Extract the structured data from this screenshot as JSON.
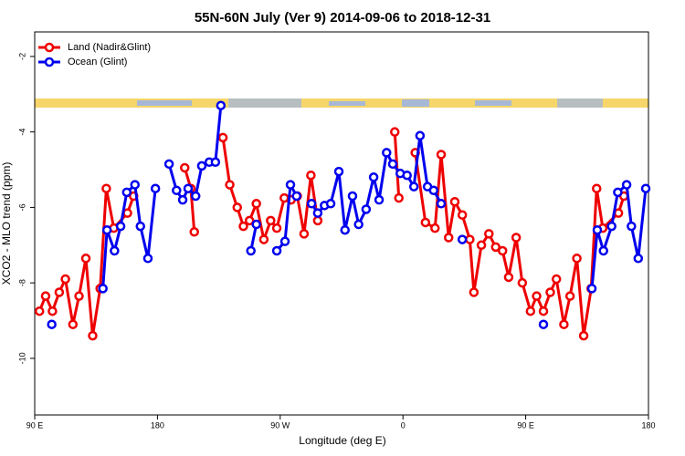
{
  "chart_data": {
    "type": "line",
    "title": "55N-60N July (Ver 9)   2014-09-06 to 2018-12-31",
    "x_label": "Longitude (deg E)",
    "y_label": "XCO2 - MLO trend (ppm)",
    "xlim": [
      90,
      540
    ],
    "ylim": [
      -11.5,
      -1.35
    ],
    "xticks": [
      {
        "value": 90,
        "label": "90 E"
      },
      180,
      {
        "value": 270,
        "label": "90 W"
      },
      {
        "value": 360,
        "label": "0"
      },
      {
        "value": 450,
        "label": "90 E"
      },
      {
        "value": 540,
        "label": "180"
      }
    ],
    "yticks": [
      -2,
      -4,
      -6,
      -8,
      -10
    ],
    "legend": "top-left",
    "series": [
      {
        "name": "Land (Nadir&Glint)",
        "color": "#ee0000",
        "x": [
          93.5,
          98,
          103,
          108,
          112.5,
          118,
          122.5,
          127.5,
          132.5,
          138,
          142.5,
          148,
          158,
          162.5,
          null,
          200,
          204.5,
          207,
          null,
          228,
          233,
          238.5,
          243,
          247.5,
          252.5,
          258,
          263,
          267.5,
          273,
          278,
          282.5,
          287.5,
          292.5,
          297.5,
          null,
          354,
          357,
          null,
          369,
          376.5,
          383.5,
          388,
          393.5,
          398,
          403.5,
          409,
          412,
          417.5,
          423,
          428,
          433,
          437.5,
          443,
          447.5,
          453.5,
          458,
          463,
          468,
          472.5,
          478,
          482.5,
          487.5,
          492.5,
          498,
          502,
          506.5,
          518,
          522
        ],
        "values": [
          -8.75,
          -8.35,
          -8.75,
          -8.25,
          -7.9,
          -9.1,
          -8.35,
          -7.35,
          -9.4,
          -8.15,
          -5.5,
          -6.55,
          -6.15,
          -5.7,
          null,
          -4.95,
          -5.5,
          -6.65,
          null,
          -4.15,
          -5.4,
          -6.0,
          -6.5,
          -6.35,
          -5.9,
          -6.85,
          -6.35,
          -6.55,
          -5.75,
          -5.8,
          -5.7,
          -6.7,
          -5.15,
          -6.35,
          null,
          -4.0,
          -5.75,
          null,
          -4.55,
          -6.4,
          -6.55,
          -4.6,
          -6.8,
          -5.85,
          -6.2,
          -6.85,
          -8.25,
          -7.0,
          -6.7,
          -7.05,
          -7.15,
          -7.85,
          -6.8,
          -8.0,
          -8.75,
          -8.35,
          -8.75,
          -8.25,
          -7.9,
          -9.1,
          -8.35,
          -7.35,
          -9.4,
          -8.15,
          -5.5,
          -6.55,
          -6.15,
          -5.7
        ]
      },
      {
        "name": "Ocean (Glint)",
        "color": "#0000ee",
        "x": [
          102.5,
          null,
          140,
          143,
          148.5,
          153,
          157.5,
          163.5,
          167.5,
          173,
          178.5,
          null,
          188.5,
          194,
          198.5,
          202.5,
          208,
          212.5,
          218,
          222.5,
          226.5,
          null,
          248.5,
          252.5,
          null,
          267.5,
          273.5,
          277.5,
          282,
          null,
          293,
          297.5,
          302.5,
          307,
          313,
          317.5,
          323,
          327.5,
          333,
          338.5,
          342.5,
          348,
          352.5,
          358,
          363,
          368,
          372.5,
          378,
          382.5,
          388,
          null,
          403.5,
          null,
          463,
          null,
          498.5,
          502.5,
          507,
          513,
          517.5,
          524,
          527.5,
          532.5,
          538
        ],
        "values": [
          -9.1,
          null,
          -8.15,
          -6.6,
          -7.15,
          -6.5,
          -5.6,
          -5.4,
          -6.5,
          -7.35,
          -5.5,
          null,
          -4.85,
          -5.55,
          -5.8,
          -5.5,
          -5.7,
          -4.9,
          -4.8,
          -4.8,
          -3.3,
          null,
          -7.15,
          -6.45,
          null,
          -7.15,
          -6.9,
          -5.4,
          -5.7,
          null,
          -5.9,
          -6.15,
          -5.95,
          -5.9,
          -5.05,
          -6.6,
          -5.7,
          -6.45,
          -6.05,
          -5.2,
          -5.8,
          -4.55,
          -4.85,
          -5.1,
          -5.15,
          -5.45,
          -4.1,
          -5.45,
          -5.55,
          -5.9,
          null,
          -6.85,
          null,
          -9.1,
          null,
          -8.15,
          -6.6,
          -7.15,
          -6.5,
          -5.6,
          -5.4,
          -6.5,
          -7.35,
          -5.5
        ]
      }
    ]
  }
}
